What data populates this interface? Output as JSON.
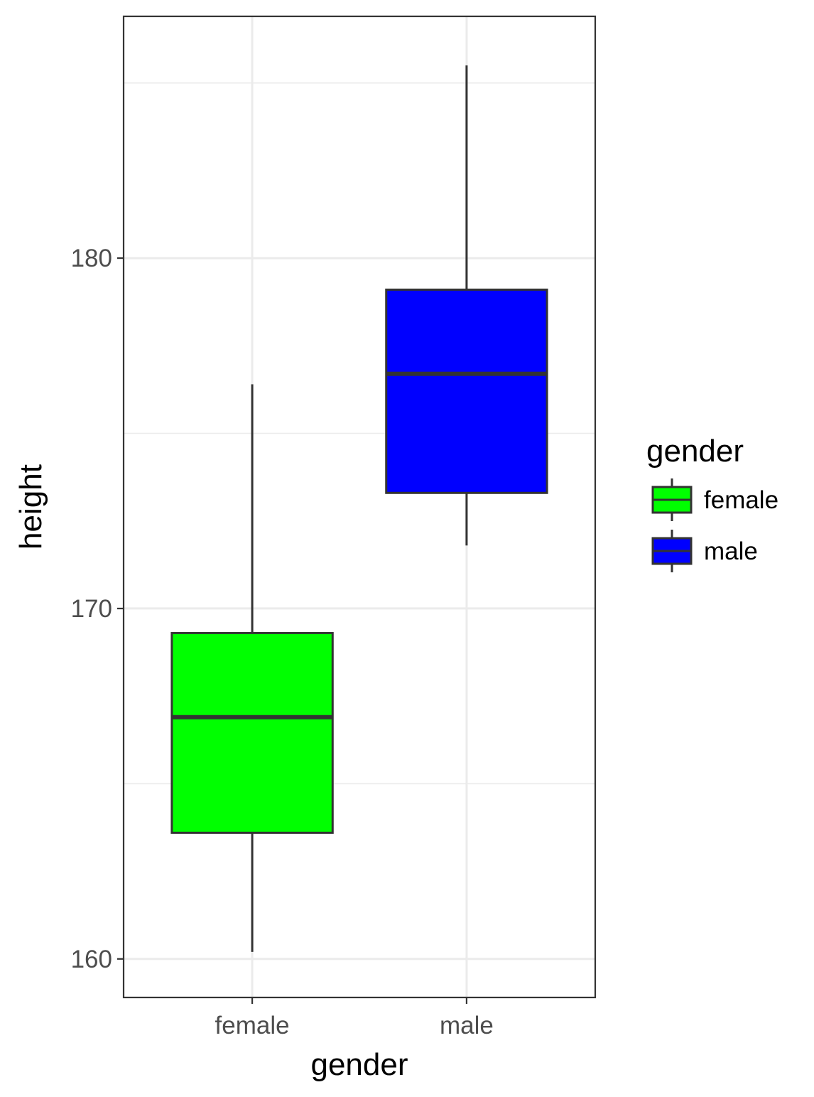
{
  "chart_data": {
    "type": "boxplot",
    "xlabel": "gender",
    "ylabel": "height",
    "categories": [
      "female",
      "male"
    ],
    "ylim": [
      158.9,
      186.9
    ],
    "yticks": [
      160,
      170,
      180
    ],
    "grid": true,
    "legend": {
      "title": "gender",
      "placement": "right",
      "entries": [
        "female",
        "male"
      ]
    },
    "boxes": [
      {
        "name": "female",
        "color": "#00FF00",
        "lower_whisker": 160.2,
        "q1": 163.6,
        "median": 166.9,
        "q3": 169.3,
        "upper_whisker": 176.4
      },
      {
        "name": "male",
        "color": "#0000FF",
        "lower_whisker": 171.8,
        "q1": 173.3,
        "median": 176.7,
        "q3": 179.1,
        "upper_whisker": 185.5
      }
    ]
  }
}
